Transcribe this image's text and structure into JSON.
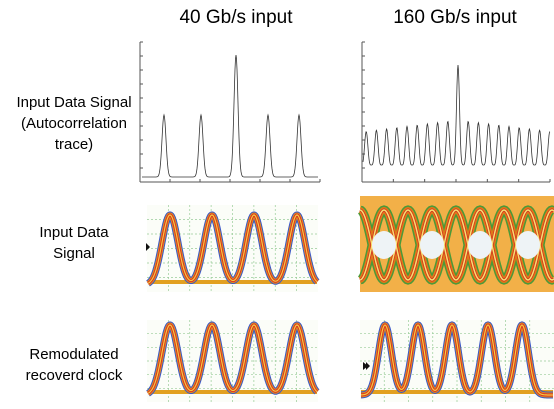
{
  "columns": [
    "40 Gb/s input",
    "160 Gb/s input"
  ],
  "rows": [
    {
      "label_lines": [
        "Input Data Signal",
        "(Autocorrelation",
        "trace)"
      ]
    },
    {
      "label_lines": [
        "Input Data",
        "Signal"
      ]
    },
    {
      "label_lines": [
        "Remodulated",
        "recoverd clock"
      ]
    }
  ]
}
